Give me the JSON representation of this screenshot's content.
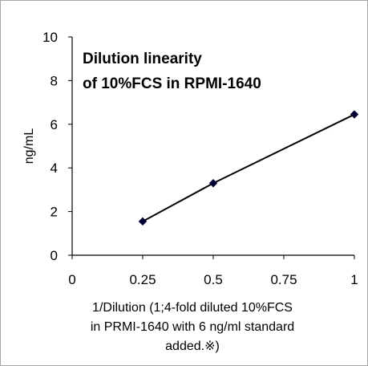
{
  "chart_data": {
    "type": "line",
    "title_lines": [
      "Dilution linearity",
      "of 10%FCS in RPMI-1640"
    ],
    "xlabel_lines": [
      "1/Dilution (1;4-fold diluted 10%FCS",
      "in PRMI-1640 with 6 ng/ml standard",
      "added.※)"
    ],
    "ylabel": "ng/mL",
    "x_ticks": [
      "0",
      "0.25",
      "0.5",
      "0.75",
      "1"
    ],
    "y_ticks": [
      "0",
      "2",
      "4",
      "6",
      "8",
      "10"
    ],
    "xlim": [
      0,
      1
    ],
    "ylim": [
      0,
      10
    ],
    "grid": false,
    "series": [
      {
        "x": [
          0.25,
          0.5,
          1
        ],
        "y": [
          1.55,
          3.3,
          6.45
        ]
      }
    ],
    "colors": {
      "line": "#000000",
      "marker": "#000033",
      "frame": "#a6a6a6"
    }
  }
}
